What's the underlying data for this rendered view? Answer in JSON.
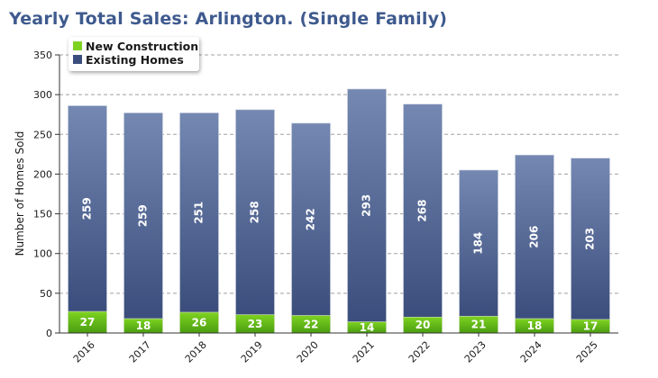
{
  "title": "Yearly Total Sales: Arlington. (Single Family)",
  "colors": {
    "new_top": "#7ed321",
    "new_bottom": "#4a9d10",
    "existing_top": "#7488b2",
    "existing_bottom": "#3b4d7c",
    "title": "#3e5a8e",
    "grid": "#a0a0a0"
  },
  "chart_data": {
    "type": "bar",
    "stacked": true,
    "categories": [
      "2016",
      "2017",
      "2018",
      "2019",
      "2020",
      "2021",
      "2022",
      "2023",
      "2024",
      "2025"
    ],
    "series": [
      {
        "name": "New Construction",
        "values": [
          27,
          18,
          26,
          23,
          22,
          14,
          20,
          21,
          18,
          17
        ]
      },
      {
        "name": "Existing Homes",
        "values": [
          259,
          259,
          251,
          258,
          242,
          293,
          268,
          184,
          206,
          203
        ]
      }
    ],
    "title": "Yearly Total Sales: Arlington. (Single Family)",
    "xlabel": "",
    "ylabel": "Number of Homes Sold",
    "ylim": [
      0,
      350
    ],
    "yticks": [
      0,
      50,
      100,
      150,
      200,
      250,
      300,
      350
    ],
    "grid": true,
    "legend_position": "top-left"
  }
}
